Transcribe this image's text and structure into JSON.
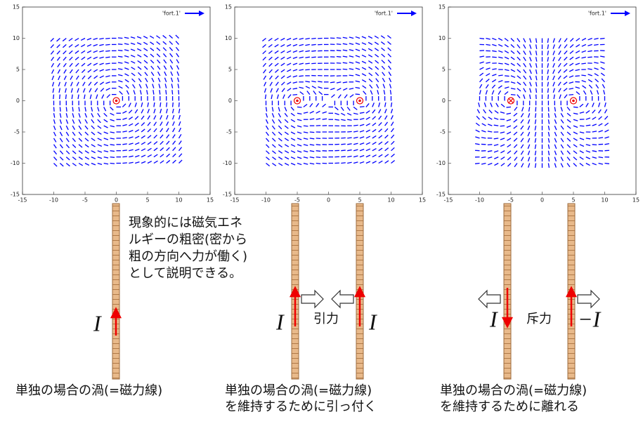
{
  "plots": [
    {
      "legend": "'fort.1'",
      "xlim": [
        -15,
        15
      ],
      "ylim": [
        -15,
        15
      ],
      "xticks": [
        -15,
        -10,
        -5,
        0,
        5,
        10,
        15
      ],
      "yticks": [
        -15,
        -10,
        -5,
        0,
        5,
        10,
        15
      ],
      "vortices": [
        {
          "x": 0,
          "y": 0,
          "sign": 1
        }
      ]
    },
    {
      "legend": "'fort.1'",
      "xlim": [
        -15,
        15
      ],
      "ylim": [
        -15,
        15
      ],
      "xticks": [
        -15,
        -10,
        -5,
        0,
        5,
        10,
        15
      ],
      "yticks": [
        -15,
        -10,
        -5,
        0,
        5,
        10,
        15
      ],
      "vortices": [
        {
          "x": -5,
          "y": 0,
          "sign": 1
        },
        {
          "x": 5,
          "y": 0,
          "sign": 1
        }
      ]
    },
    {
      "legend": "'fort.1'",
      "xlim": [
        -15,
        15
      ],
      "ylim": [
        -15,
        15
      ],
      "xticks": [
        -15,
        -10,
        -5,
        0,
        5,
        10,
        15
      ],
      "yticks": [
        -15,
        -10,
        -5,
        0,
        5,
        10,
        15
      ],
      "vortices": [
        {
          "x": -5,
          "y": 0,
          "sign": -1
        },
        {
          "x": 5,
          "y": 0,
          "sign": 1
        }
      ]
    }
  ],
  "note": [
    "現象的には磁気エネ",
    "ルギーの粗密(密から",
    "粗の方向へ力が働く)",
    "として説明できる。"
  ],
  "labels": {
    "current1": "I",
    "current2a": "I",
    "attraction": "引力",
    "current2b": "I",
    "current3a": "I",
    "repulsion": "斥力",
    "current3b": "−I"
  },
  "captions": [
    [
      "単独の場合の渦(=磁力線)"
    ],
    [
      "単独の場合の渦(=磁力線)",
      "を維持するために引っ付く"
    ],
    [
      "単独の場合の渦(=磁力線)",
      "を維持するために離れる"
    ]
  ]
}
